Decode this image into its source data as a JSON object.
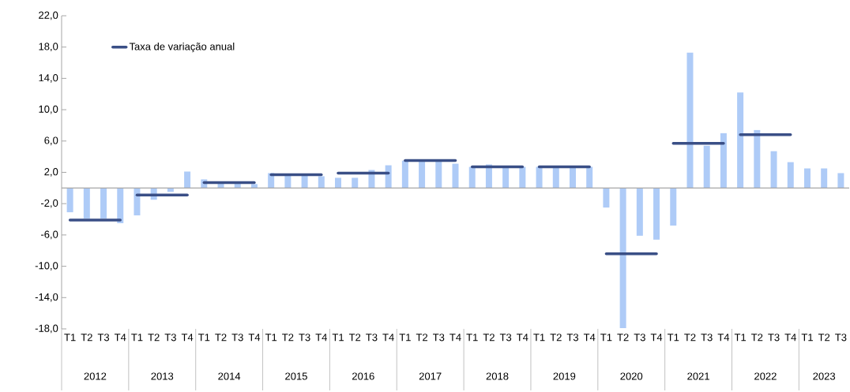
{
  "chart_data": {
    "type": "bar",
    "categories": [
      "T1",
      "T2",
      "T3",
      "T4",
      "T1",
      "T2",
      "T3",
      "T4",
      "T1",
      "T2",
      "T3",
      "T4",
      "T1",
      "T2",
      "T3",
      "T4",
      "T1",
      "T2",
      "T3",
      "T4",
      "T1",
      "T2",
      "T3",
      "T4",
      "T1",
      "T2",
      "T3",
      "T4",
      "T1",
      "T2",
      "T3",
      "T4",
      "T1",
      "T2",
      "T3",
      "T4",
      "T1",
      "T2",
      "T3",
      "T4",
      "T1",
      "T2",
      "T3",
      "T4",
      "T1",
      "T2",
      "T3"
    ],
    "series": [
      {
        "type": "bar",
        "color": "#aecbf7",
        "values": [
          -3.1,
          -3.9,
          -3.9,
          -4.5,
          -3.5,
          -1.5,
          -0.5,
          2.1,
          1.1,
          0.8,
          0.8,
          0.5,
          1.9,
          1.7,
          1.7,
          1.5,
          1.3,
          1.3,
          2.3,
          2.9,
          3.5,
          3.5,
          3.5,
          3.1,
          2.7,
          3.0,
          2.7,
          2.7,
          2.7,
          2.6,
          2.7,
          2.7,
          -2.5,
          -17.9,
          -6.1,
          -6.6,
          -4.8,
          17.3,
          5.4,
          7.0,
          12.2,
          7.4,
          4.7,
          3.3,
          2.5,
          2.5,
          1.9
        ]
      },
      {
        "type": "line",
        "name": "Taxa de variação anual",
        "color": "#3a4f86",
        "values": [
          -4.1,
          -4.1,
          -4.1,
          -4.1,
          -0.9,
          -0.9,
          -0.9,
          -0.9,
          0.7,
          0.7,
          0.7,
          0.7,
          1.7,
          1.7,
          1.7,
          1.7,
          1.9,
          1.9,
          1.9,
          1.9,
          3.5,
          3.5,
          3.5,
          3.5,
          2.7,
          2.7,
          2.7,
          2.7,
          2.7,
          2.7,
          2.7,
          2.7,
          -8.4,
          -8.4,
          -8.4,
          -8.4,
          5.7,
          5.7,
          5.7,
          5.7,
          6.8,
          6.8,
          6.8,
          6.8,
          null,
          null,
          null
        ]
      }
    ],
    "annotations": [
      "2012",
      "2013",
      "2014",
      "2015",
      "2016",
      "2017",
      "2018",
      "2019",
      "2020",
      "2021",
      "2022",
      "2023"
    ],
    "ylim": [
      -18,
      22
    ],
    "yticks": [
      {
        "value": -18,
        "label": "-18,0"
      },
      {
        "value": -14,
        "label": "-14,0"
      },
      {
        "value": -10,
        "label": "-10,0"
      },
      {
        "value": -6,
        "label": "-6,0"
      },
      {
        "value": -2,
        "label": "-2,0"
      },
      {
        "value": 2,
        "label": "2,0"
      },
      {
        "value": 6,
        "label": "6,0"
      },
      {
        "value": 10,
        "label": "10,0"
      },
      {
        "value": 14,
        "label": "14,0"
      },
      {
        "value": 18,
        "label": "18,0"
      },
      {
        "value": 22,
        "label": "22,0"
      }
    ],
    "grid": false,
    "legend": "top left"
  }
}
